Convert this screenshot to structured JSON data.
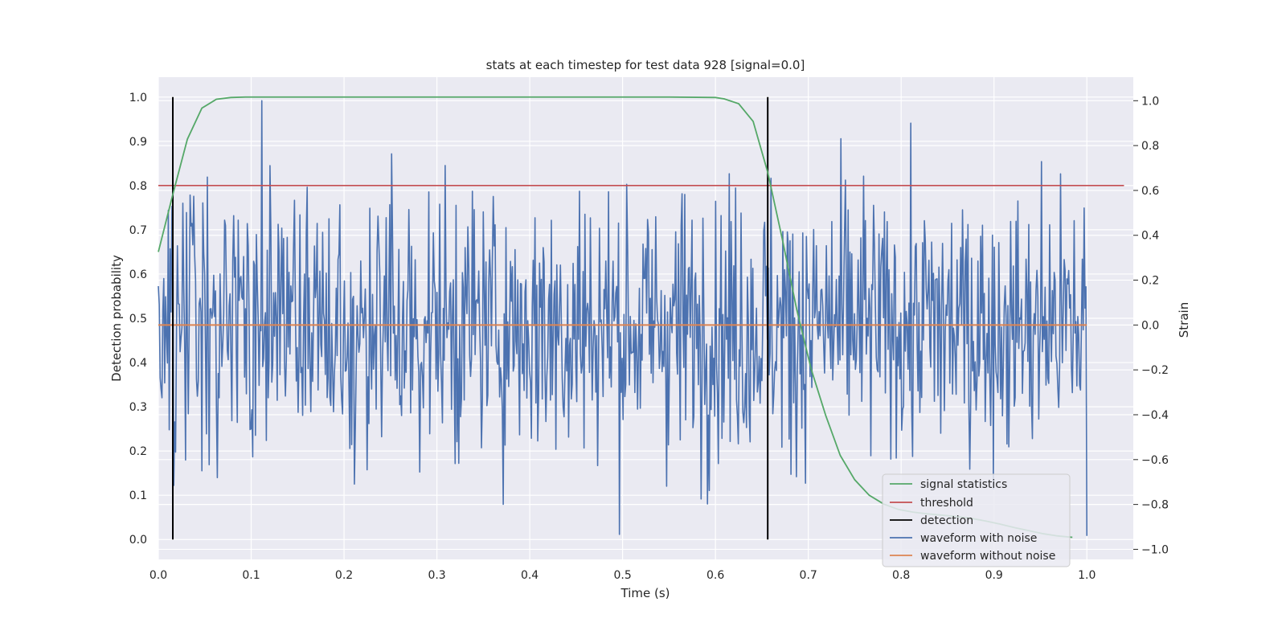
{
  "chart_data": {
    "type": "line",
    "title": "stats at each timestep for test data 928 [signal=0.0]",
    "xlabel": "Time (s)",
    "ylabel": "Detection probability",
    "y2label": "Strain",
    "xlim": [
      0.0,
      1.05
    ],
    "ylim": [
      -0.045,
      1.045
    ],
    "y2lim": [
      -1.045,
      1.105
    ],
    "xticks": [
      "0.0",
      "0.1",
      "0.2",
      "0.3",
      "0.4",
      "0.5",
      "0.6",
      "0.7",
      "0.8",
      "0.9",
      "1.0"
    ],
    "yticks": [
      "0.0",
      "0.1",
      "0.2",
      "0.3",
      "0.4",
      "0.5",
      "0.6",
      "0.7",
      "0.8",
      "0.9",
      "1.0"
    ],
    "y2ticks": [
      "−1.0",
      "−0.8",
      "−0.6",
      "−0.4",
      "−0.2",
      "0.0",
      "0.2",
      "0.4",
      "0.6",
      "0.8",
      "1.0"
    ],
    "grid": true,
    "legend_position": "lower-right",
    "colors": {
      "signal": "#55a868",
      "threshold": "#c44e52",
      "detection": "#000000",
      "noisy": "#4c72b0",
      "clean": "#dd8452",
      "axes_bg": "#eaeaf2",
      "grid": "#ffffff"
    },
    "series": [
      {
        "name": "signal statistics",
        "axis": "left",
        "x": [
          0.0,
          0.0156,
          0.0313,
          0.0469,
          0.0625,
          0.0781,
          0.0938,
          0.1094,
          0.125,
          0.2,
          0.3,
          0.4,
          0.5,
          0.55,
          0.6,
          0.6094,
          0.625,
          0.6406,
          0.6563,
          0.6719,
          0.6875,
          0.7031,
          0.7188,
          0.7344,
          0.75,
          0.7656,
          0.7813,
          0.7969,
          0.8125,
          0.8281,
          0.8438,
          0.8594,
          0.875,
          0.8906,
          0.9063,
          0.9219,
          0.9375,
          0.9531,
          0.9688,
          0.9844
        ],
        "values": [
          0.65,
          0.78,
          0.905,
          0.975,
          0.995,
          0.999,
          1.0,
          1.0,
          1.0,
          1.0,
          1.0,
          1.0,
          1.0,
          1.0,
          0.999,
          0.996,
          0.985,
          0.945,
          0.83,
          0.68,
          0.52,
          0.385,
          0.28,
          0.19,
          0.135,
          0.1,
          0.08,
          0.068,
          0.062,
          0.058,
          0.055,
          0.052,
          0.048,
          0.042,
          0.035,
          0.027,
          0.02,
          0.013,
          0.008,
          0.005
        ]
      },
      {
        "name": "threshold",
        "axis": "left",
        "x": [
          0.0,
          1.04
        ],
        "values": [
          0.8,
          0.8
        ]
      },
      {
        "name": "detection",
        "axis": "left",
        "x": [
          0.0156,
          0.6563
        ],
        "values": [
          0.0,
          1.0
        ],
        "kind": "vlines"
      },
      {
        "name": "waveform with noise",
        "axis": "right",
        "x_start": 0.0,
        "x_end": 1.0,
        "n_points": 1024,
        "mean": 0.0,
        "std": 0.3,
        "min": -0.94,
        "max": 1.0
      },
      {
        "name": "waveform without noise",
        "axis": "right",
        "x": [
          0.0,
          1.0
        ],
        "values": [
          0.0,
          0.0
        ]
      }
    ],
    "legend": [
      "signal statistics",
      "threshold",
      "detection",
      "waveform with noise",
      "waveform without noise"
    ]
  }
}
